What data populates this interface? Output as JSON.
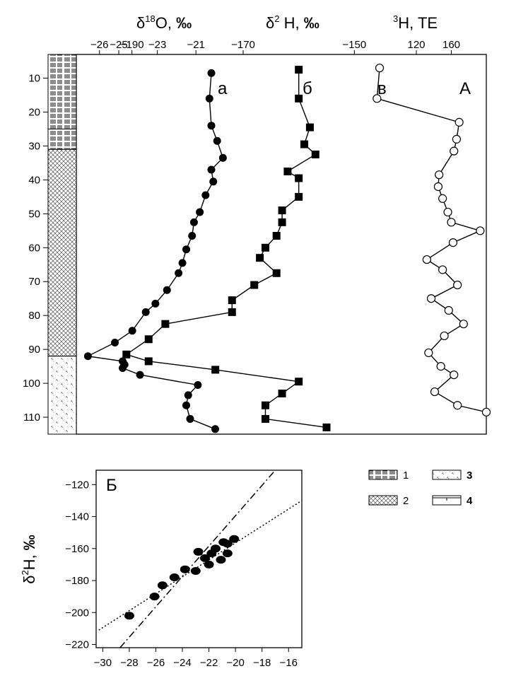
{
  "chart_data": [
    {
      "type": "line",
      "panel": "A",
      "panel_label": "А",
      "y_axis": {
        "ticks": [
          10,
          20,
          30,
          40,
          50,
          60,
          70,
          80,
          90,
          100,
          110
        ],
        "lim": [
          3,
          115
        ],
        "inverted": true
      },
      "lithology": [
        {
          "range": [
            3,
            25
          ],
          "pattern": "1"
        },
        {
          "range": [
            25,
            31
          ],
          "pattern": "1"
        },
        {
          "range": [
            31,
            92
          ],
          "pattern": "2"
        },
        {
          "range": [
            92,
            115
          ],
          "pattern": "3"
        }
      ],
      "tracks": [
        {
          "label": "а",
          "header": "δ18O, ‰",
          "xlim": [
            -27.2,
            -13.2
          ],
          "ticks": [
            -26,
            -25,
            -23,
            -21
          ],
          "marker": "filled-circle",
          "depth": [
            8.5,
            16,
            24,
            28.5,
            33.5,
            37,
            40.5,
            44.5,
            49.5,
            52.5,
            56.5,
            60.5,
            64.5,
            67.5,
            72.5,
            76.5,
            79,
            84.5,
            88,
            92,
            93.5,
            94.5,
            95.5,
            97.5,
            100.5,
            103.5,
            106.5,
            110.5,
            113.5
          ],
          "values": [
            -20.2,
            -20.3,
            -20.2,
            -19.9,
            -19.6,
            -20.2,
            -20.1,
            -20.5,
            -20.8,
            -21.1,
            -21.2,
            -21.5,
            -21.7,
            -21.9,
            -22.5,
            -23.1,
            -23.6,
            -24.3,
            -25.2,
            -26.6,
            -24.8,
            -24.7,
            -24.8,
            -23.9,
            -20.9,
            -21.4,
            -21.5,
            -21.3,
            -20.0
          ]
        },
        {
          "label": "б",
          "header": "δ2H, ‰",
          "xlim": [
            -200,
            -140
          ],
          "ticks": [
            -190,
            -170,
            -150
          ],
          "marker": "filled-square",
          "depth": [
            7.5,
            16,
            24.5,
            29.5,
            32.5,
            37.5,
            39.5,
            45,
            49,
            52.5,
            56.5,
            60,
            63,
            67.5,
            71,
            75.5,
            79,
            82.5,
            87,
            91.5,
            93.5,
            96,
            99.5,
            103,
            106.5,
            110.5,
            113
          ],
          "values": [
            -160,
            -160,
            -158,
            -159,
            -157,
            -162,
            -160,
            -160,
            -163,
            -163,
            -164,
            -166,
            -167,
            -164,
            -168,
            -172,
            -172,
            -184,
            -187,
            -191,
            -187,
            -175,
            -160,
            -163,
            -166,
            -166,
            -155
          ]
        },
        {
          "label": "в",
          "header": "3H, TE",
          "xlim": [
            40,
            200
          ],
          "ticks": [
            120,
            160
          ],
          "marker": "open-circle",
          "depth": [
            7,
            16,
            23,
            28,
            31.5,
            38.5,
            42,
            45.5,
            49.5,
            52.5,
            55,
            58.5,
            63.5,
            66.5,
            71,
            75,
            78.5,
            82.5,
            86,
            91,
            95,
            97.5,
            102.5,
            106.5,
            108.5
          ],
          "values": [
            78,
            75,
            169,
            166,
            163,
            146,
            145,
            150,
            156,
            160,
            193,
            162,
            132,
            150,
            167,
            137,
            157,
            174,
            152,
            134,
            148,
            163,
            141,
            167,
            200
          ]
        }
      ]
    },
    {
      "type": "scatter",
      "panel": "B",
      "panel_label": "Б",
      "ylabel": "δ2H, ‰",
      "xlim": [
        -30.5,
        -15
      ],
      "ylim": [
        -222,
        -111
      ],
      "xticks": [
        -30,
        -28,
        -26,
        -24,
        -22,
        -20,
        -18,
        -16
      ],
      "yticks": [
        -120,
        -140,
        -160,
        -180,
        -200,
        -220
      ],
      "x": [
        -28.0,
        -26.1,
        -25.5,
        -24.6,
        -23.8,
        -23.0,
        -22.8,
        -22.3,
        -22.0,
        -21.8,
        -21.5,
        -21.1,
        -20.9,
        -20.6,
        -20.6,
        -20.1
      ],
      "y": [
        -202,
        -190,
        -183,
        -178,
        -173,
        -174,
        -162,
        -166,
        -170,
        -163,
        -160,
        -167,
        -156,
        -157,
        -163,
        -154
      ],
      "lines": [
        {
          "style": "dash-dot",
          "x": [
            -28.7,
            -17.0
          ],
          "y": [
            -222,
            -111
          ]
        },
        {
          "style": "dotted",
          "x": [
            -30.3,
            -15.0
          ],
          "y": [
            -211,
            -130
          ]
        }
      ]
    }
  ],
  "legend": [
    {
      "pattern": "1",
      "label": "1",
      "bold": false
    },
    {
      "pattern": "2",
      "label": "2",
      "bold": false
    },
    {
      "pattern": "3",
      "label": "3",
      "bold": true
    },
    {
      "pattern": "4",
      "label": "4",
      "bold": true
    }
  ]
}
